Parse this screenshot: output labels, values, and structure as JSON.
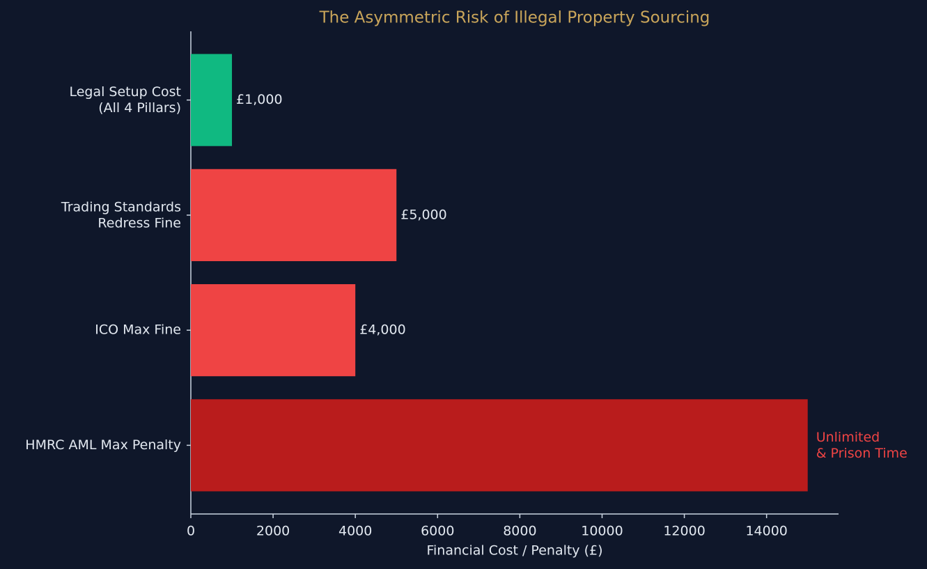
{
  "chart_data": {
    "type": "barh",
    "title": "The Asymmetric Risk of Illegal Property Sourcing",
    "xlabel": "Financial Cost / Penalty (£)",
    "categories": [
      "Legal Setup Cost\n(All 4 Pillars)",
      "Trading Standards\nRedress Fine",
      "ICO Max Fine",
      "HMRC AML Max Penalty"
    ],
    "values": [
      1000,
      5000,
      4000,
      15000
    ],
    "value_labels": [
      "£1,000",
      "£5,000",
      "£4,000",
      null
    ],
    "colors": [
      "#10b981",
      "#ef4444",
      "#ef4444",
      "#b91c1c"
    ],
    "annotation": "Unlimited\n& Prison Time",
    "annotation_color": "#ef4444",
    "title_color": "#c9a55a",
    "xlim": [
      0,
      15750
    ],
    "xticks": [
      0,
      2000,
      4000,
      6000,
      8000,
      10000,
      12000,
      14000
    ]
  }
}
